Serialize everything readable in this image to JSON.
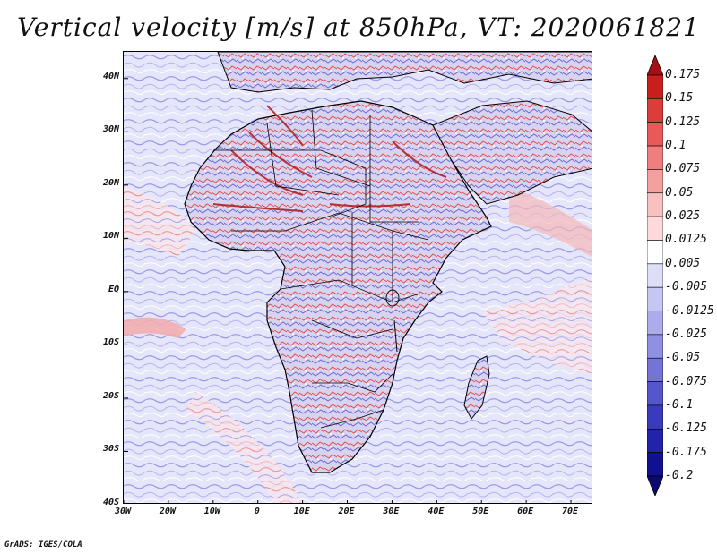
{
  "title": "Vertical velocity [m/s] at 850hPa, VT: 2020061821",
  "map": {
    "region": "Africa",
    "lat_range": [
      -40,
      45
    ],
    "lon_range": [
      -30,
      75
    ],
    "lat_ticks": [
      "40N",
      "30N",
      "20N",
      "10N",
      "EQ",
      "10S",
      "20S",
      "30S",
      "40S"
    ],
    "lat_values": [
      40,
      30,
      20,
      10,
      0,
      -10,
      -20,
      -30,
      -40
    ],
    "lon_ticks": [
      "30W",
      "20W",
      "10W",
      "0",
      "10E",
      "20E",
      "30E",
      "40E",
      "50E",
      "60E",
      "70E"
    ],
    "lon_values": [
      -30,
      -20,
      -10,
      0,
      10,
      20,
      30,
      40,
      50,
      60,
      70
    ]
  },
  "colorbar": {
    "labels": [
      "0.175",
      "0.15",
      "0.125",
      "0.1",
      "0.075",
      "0.05",
      "0.025",
      "0.0125",
      "0.005",
      "-0.005",
      "-0.0125",
      "-0.025",
      "-0.05",
      "-0.075",
      "-0.1",
      "-0.125",
      "-0.175",
      "-0.2"
    ],
    "colors": [
      "#a50f15",
      "#c81e1e",
      "#dc3c3c",
      "#e85a5a",
      "#ef7f7f",
      "#f4a0a0",
      "#f8c0c0",
      "#fcdada",
      "#ffffff",
      "#dedef8",
      "#c6c6f2",
      "#acacec",
      "#9090e2",
      "#7373d8",
      "#5656cc",
      "#3a3abe",
      "#2222aa",
      "#101090",
      "#0a0a70"
    ]
  },
  "credit": "GrADS: IGES/COLA",
  "colors": {
    "land_outline": "#000000",
    "background": "#eeeefc"
  }
}
